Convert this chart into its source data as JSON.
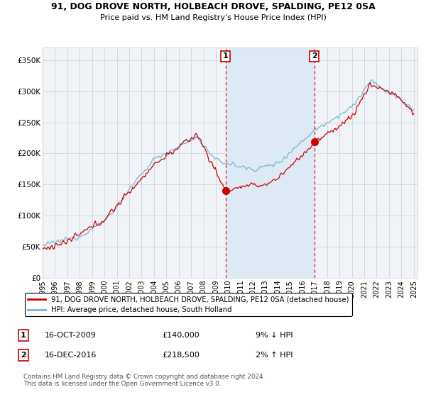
{
  "title": "91, DOG DROVE NORTH, HOLBEACH DROVE, SPALDING, PE12 0SA",
  "subtitle": "Price paid vs. HM Land Registry's House Price Index (HPI)",
  "hpi_color": "#7ab3d4",
  "price_color": "#cc0000",
  "vline_color": "#cc0000",
  "shade_color": "#ddeaf5",
  "ylim": [
    0,
    370000
  ],
  "yticks": [
    0,
    50000,
    100000,
    150000,
    200000,
    250000,
    300000,
    350000
  ],
  "ytick_labels": [
    "£0",
    "£50K",
    "£100K",
    "£150K",
    "£200K",
    "£250K",
    "£300K",
    "£350K"
  ],
  "legend_line1": "91, DOG DROVE NORTH, HOLBEACH DROVE, SPALDING, PE12 0SA (detached house)",
  "legend_line2": "HPI: Average price, detached house, South Holland",
  "annotation1_num": "1",
  "annotation1_date": "16-OCT-2009",
  "annotation1_price": "£140,000",
  "annotation1_hpi": "9% ↓ HPI",
  "annotation1_year": 2009.79,
  "annotation1_value": 140000,
  "annotation2_num": "2",
  "annotation2_date": "16-DEC-2016",
  "annotation2_price": "£218,500",
  "annotation2_hpi": "2% ↑ HPI",
  "annotation2_year": 2016.96,
  "annotation2_value": 218500,
  "footer": "Contains HM Land Registry data © Crown copyright and database right 2024.\nThis data is licensed under the Open Government Licence v3.0.",
  "background_color": "#ffffff",
  "plot_bg_color": "#f0f4f8",
  "grid_color": "#cccccc"
}
